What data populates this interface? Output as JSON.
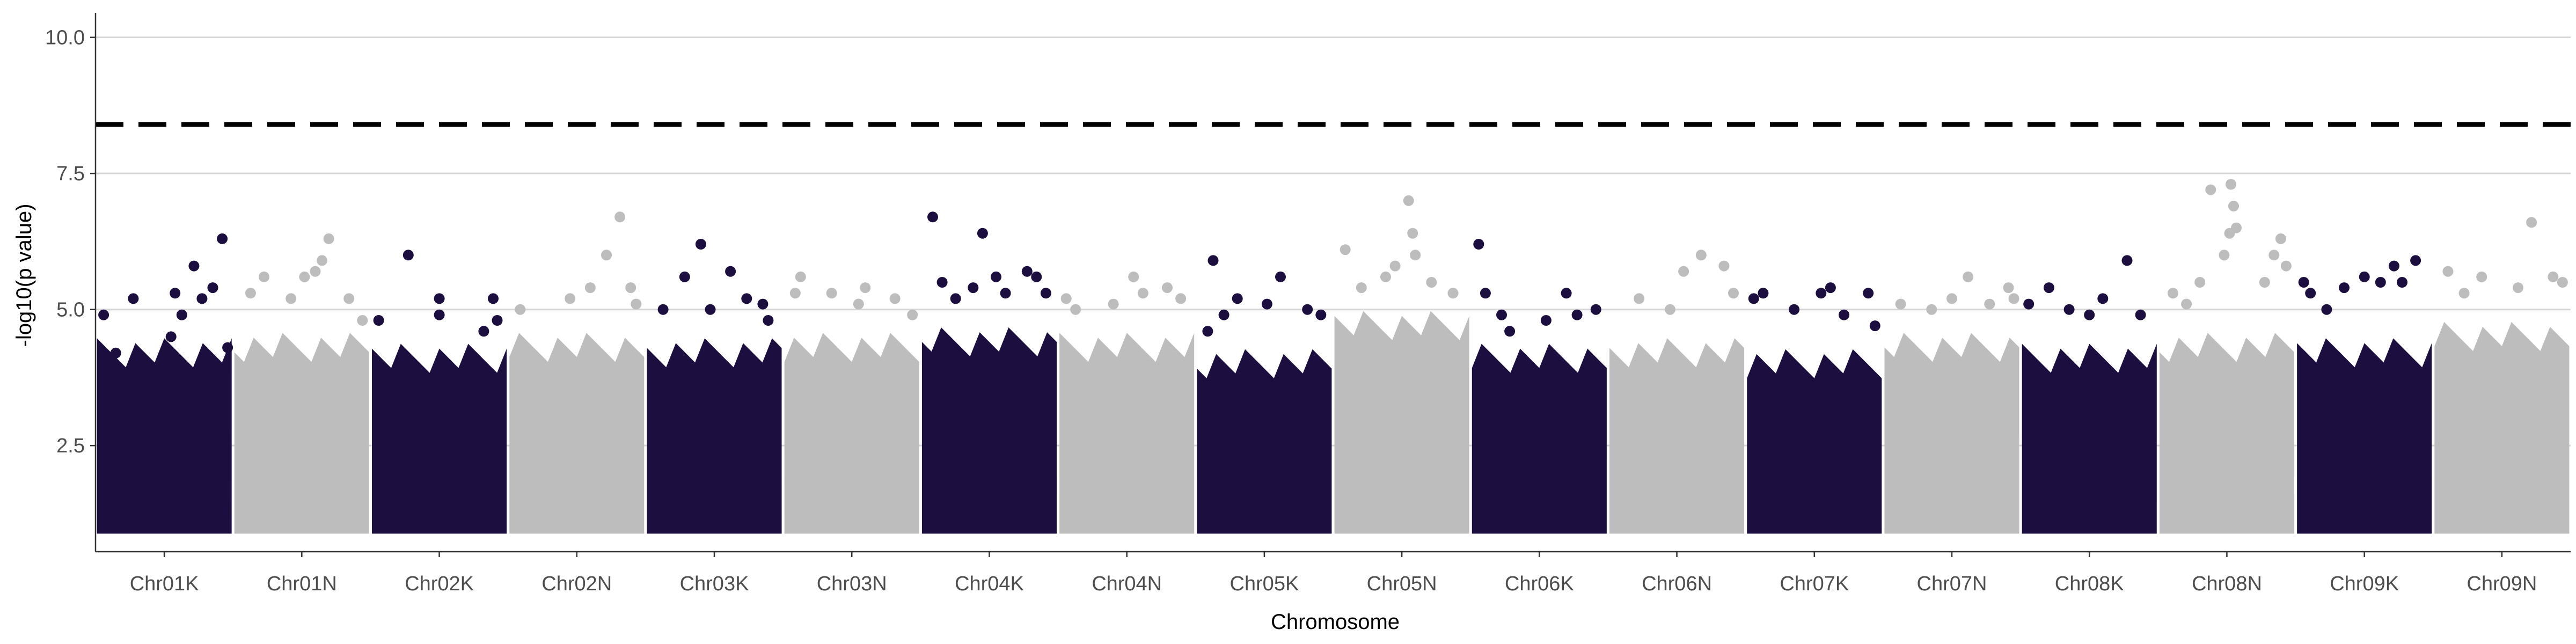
{
  "chart_data": {
    "type": "scatter",
    "title": "",
    "xlabel": "Chromosome",
    "ylabel": "-log10(p value)",
    "ylim": [
      0.55,
      10.45
    ],
    "y_ticks": [
      2.5,
      5.0,
      7.5,
      10.0
    ],
    "y_tick_labels": [
      "2.5",
      "5.0",
      "7.5",
      "10.0"
    ],
    "grid": "horizontal major lines",
    "threshold": 8.4,
    "threshold_style": "dashed",
    "colors": {
      "dark": "#1c0f40",
      "light": "#bdbdbd",
      "grid": "#d6d6d6",
      "axis": "#333333"
    },
    "categories": [
      "Chr01K",
      "Chr01N",
      "Chr02K",
      "Chr02N",
      "Chr03K",
      "Chr03N",
      "Chr04K",
      "Chr04N",
      "Chr05K",
      "Chr05N",
      "Chr06K",
      "Chr06N",
      "Chr07K",
      "Chr07N",
      "Chr08K",
      "Chr08N",
      "Chr09K",
      "Chr09N"
    ],
    "series": [
      {
        "category": "Chr01K",
        "color_group": "dark",
        "dense_top": 4.5,
        "points": [
          [
            0.05,
            4.9
          ],
          [
            0.14,
            4.2
          ],
          [
            0.27,
            5.2
          ],
          [
            0.55,
            4.5
          ],
          [
            0.58,
            5.3
          ],
          [
            0.63,
            4.9
          ],
          [
            0.72,
            5.8
          ],
          [
            0.78,
            5.2
          ],
          [
            0.86,
            5.4
          ],
          [
            0.93,
            6.3
          ],
          [
            0.97,
            4.3
          ]
        ]
      },
      {
        "category": "Chr01N",
        "color_group": "light",
        "dense_top": 4.6,
        "points": [
          [
            0.12,
            5.3
          ],
          [
            0.22,
            5.6
          ],
          [
            0.42,
            5.2
          ],
          [
            0.52,
            5.6
          ],
          [
            0.6,
            5.7
          ],
          [
            0.65,
            5.9
          ],
          [
            0.7,
            6.3
          ],
          [
            0.85,
            5.2
          ],
          [
            0.95,
            4.8
          ]
        ]
      },
      {
        "category": "Chr02K",
        "color_group": "dark",
        "dense_top": 4.4,
        "points": [
          [
            0.05,
            4.8
          ],
          [
            0.27,
            6.0
          ],
          [
            0.5,
            4.9
          ],
          [
            0.5,
            5.2
          ],
          [
            0.83,
            4.6
          ],
          [
            0.9,
            5.2
          ],
          [
            0.93,
            4.8
          ]
        ]
      },
      {
        "category": "Chr02N",
        "color_group": "light",
        "dense_top": 4.6,
        "points": [
          [
            0.08,
            5.0
          ],
          [
            0.45,
            5.2
          ],
          [
            0.6,
            5.4
          ],
          [
            0.72,
            6.0
          ],
          [
            0.82,
            6.7
          ],
          [
            0.9,
            5.4
          ],
          [
            0.94,
            5.1
          ]
        ]
      },
      {
        "category": "Chr03K",
        "color_group": "dark",
        "dense_top": 4.5,
        "points": [
          [
            0.12,
            5.0
          ],
          [
            0.28,
            5.6
          ],
          [
            0.4,
            6.2
          ],
          [
            0.47,
            5.0
          ],
          [
            0.62,
            5.7
          ],
          [
            0.74,
            5.2
          ],
          [
            0.86,
            5.1
          ],
          [
            0.9,
            4.8
          ]
        ]
      },
      {
        "category": "Chr03N",
        "color_group": "light",
        "dense_top": 4.6,
        "points": [
          [
            0.08,
            5.3
          ],
          [
            0.12,
            5.6
          ],
          [
            0.35,
            5.3
          ],
          [
            0.55,
            5.1
          ],
          [
            0.6,
            5.4
          ],
          [
            0.82,
            5.2
          ],
          [
            0.95,
            4.9
          ]
        ]
      },
      {
        "category": "Chr04K",
        "color_group": "dark",
        "dense_top": 4.7,
        "points": [
          [
            0.08,
            6.7
          ],
          [
            0.15,
            5.5
          ],
          [
            0.25,
            5.2
          ],
          [
            0.38,
            5.4
          ],
          [
            0.45,
            6.4
          ],
          [
            0.55,
            5.6
          ],
          [
            0.62,
            5.3
          ],
          [
            0.78,
            5.7
          ],
          [
            0.85,
            5.6
          ],
          [
            0.92,
            5.3
          ]
        ]
      },
      {
        "category": "Chr04N",
        "color_group": "light",
        "dense_top": 4.6,
        "points": [
          [
            0.05,
            5.2
          ],
          [
            0.12,
            5.0
          ],
          [
            0.4,
            5.1
          ],
          [
            0.55,
            5.6
          ],
          [
            0.62,
            5.3
          ],
          [
            0.8,
            5.4
          ],
          [
            0.9,
            5.2
          ]
        ]
      },
      {
        "category": "Chr05K",
        "color_group": "dark",
        "dense_top": 4.3,
        "points": [
          [
            0.08,
            4.6
          ],
          [
            0.12,
            5.9
          ],
          [
            0.2,
            4.9
          ],
          [
            0.3,
            5.2
          ],
          [
            0.52,
            5.1
          ],
          [
            0.62,
            5.6
          ],
          [
            0.82,
            5.0
          ],
          [
            0.92,
            4.9
          ]
        ]
      },
      {
        "category": "Chr05N",
        "color_group": "light",
        "dense_top": 5.0,
        "points": [
          [
            0.08,
            6.1
          ],
          [
            0.2,
            5.4
          ],
          [
            0.38,
            5.6
          ],
          [
            0.45,
            5.8
          ],
          [
            0.55,
            7.0
          ],
          [
            0.58,
            6.4
          ],
          [
            0.6,
            6.0
          ],
          [
            0.72,
            5.5
          ],
          [
            0.88,
            5.3
          ]
        ]
      },
      {
        "category": "Chr06K",
        "color_group": "dark",
        "dense_top": 4.4,
        "points": [
          [
            0.05,
            6.2
          ],
          [
            0.1,
            5.3
          ],
          [
            0.22,
            4.9
          ],
          [
            0.28,
            4.6
          ],
          [
            0.55,
            4.8
          ],
          [
            0.7,
            5.3
          ],
          [
            0.78,
            4.9
          ],
          [
            0.92,
            5.0
          ]
        ]
      },
      {
        "category": "Chr06N",
        "color_group": "light",
        "dense_top": 4.5,
        "points": [
          [
            0.22,
            5.2
          ],
          [
            0.45,
            5.0
          ],
          [
            0.55,
            5.7
          ],
          [
            0.68,
            6.0
          ],
          [
            0.85,
            5.8
          ],
          [
            0.92,
            5.3
          ]
        ]
      },
      {
        "category": "Chr07K",
        "color_group": "dark",
        "dense_top": 4.3,
        "points": [
          [
            0.05,
            5.2
          ],
          [
            0.12,
            5.3
          ],
          [
            0.35,
            5.0
          ],
          [
            0.55,
            5.3
          ],
          [
            0.62,
            5.4
          ],
          [
            0.72,
            4.9
          ],
          [
            0.9,
            5.3
          ],
          [
            0.95,
            4.7
          ]
        ]
      },
      {
        "category": "Chr07N",
        "color_group": "light",
        "dense_top": 4.6,
        "points": [
          [
            0.12,
            5.1
          ],
          [
            0.35,
            5.0
          ],
          [
            0.5,
            5.2
          ],
          [
            0.62,
            5.6
          ],
          [
            0.78,
            5.1
          ],
          [
            0.92,
            5.4
          ],
          [
            0.96,
            5.2
          ]
        ]
      },
      {
        "category": "Chr08K",
        "color_group": "dark",
        "dense_top": 4.4,
        "points": [
          [
            0.05,
            5.1
          ],
          [
            0.2,
            5.4
          ],
          [
            0.35,
            5.0
          ],
          [
            0.5,
            4.9
          ],
          [
            0.6,
            5.2
          ],
          [
            0.78,
            5.9
          ],
          [
            0.88,
            4.9
          ]
        ]
      },
      {
        "category": "Chr08N",
        "color_group": "light",
        "dense_top": 4.6,
        "points": [
          [
            0.1,
            5.3
          ],
          [
            0.2,
            5.1
          ],
          [
            0.3,
            5.5
          ],
          [
            0.38,
            7.2
          ],
          [
            0.48,
            6.0
          ],
          [
            0.52,
            6.4
          ],
          [
            0.53,
            7.3
          ],
          [
            0.55,
            6.9
          ],
          [
            0.57,
            6.5
          ],
          [
            0.78,
            5.5
          ],
          [
            0.85,
            6.0
          ],
          [
            0.9,
            6.3
          ],
          [
            0.94,
            5.8
          ]
        ]
      },
      {
        "category": "Chr09K",
        "color_group": "dark",
        "dense_top": 4.5,
        "points": [
          [
            0.05,
            5.5
          ],
          [
            0.1,
            5.3
          ],
          [
            0.22,
            5.0
          ],
          [
            0.35,
            5.4
          ],
          [
            0.5,
            5.6
          ],
          [
            0.62,
            5.5
          ],
          [
            0.72,
            5.8
          ],
          [
            0.78,
            5.5
          ],
          [
            0.88,
            5.9
          ]
        ]
      },
      {
        "category": "Chr09N",
        "color_group": "light",
        "dense_top": 4.8,
        "points": [
          [
            0.1,
            5.7
          ],
          [
            0.22,
            5.3
          ],
          [
            0.35,
            5.6
          ],
          [
            0.62,
            5.4
          ],
          [
            0.72,
            6.6
          ],
          [
            0.88,
            5.6
          ],
          [
            0.95,
            5.5
          ]
        ]
      }
    ]
  }
}
